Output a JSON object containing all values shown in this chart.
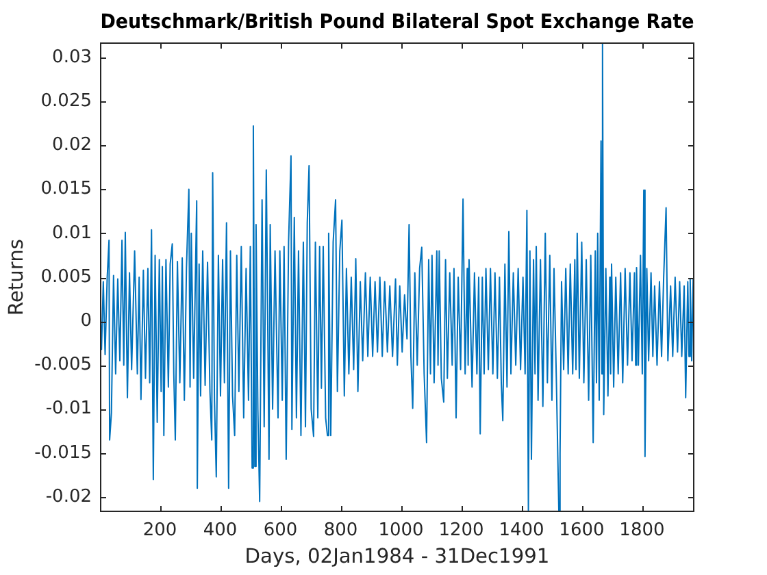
{
  "chart_data": {
    "type": "line",
    "title": "Deutschmark/British Pound Bilateral Spot Exchange Rate",
    "xlabel": "Days, 02Jan1984 - 31Dec1991",
    "ylabel": "Returns",
    "color": "#0072bd",
    "xlim": [
      1,
      1974
    ],
    "ylim": [
      -0.0217,
      0.0317
    ],
    "xticks": [
      200,
      400,
      600,
      800,
      1000,
      1200,
      1400,
      1600,
      1800
    ],
    "yticks": [
      -0.02,
      -0.015,
      -0.01,
      -0.005,
      0,
      0.005,
      0.01,
      0.015,
      0.02,
      0.025,
      0.03
    ],
    "x": [
      1,
      6,
      12,
      18,
      25,
      31,
      33,
      39,
      46,
      53,
      60,
      67,
      74,
      80,
      85,
      92,
      99,
      106,
      116,
      125,
      131,
      137,
      145,
      152,
      160,
      166,
      172,
      178,
      184,
      191,
      198,
      204,
      208,
      213,
      220,
      228,
      234,
      241,
      246,
      251,
      258,
      266,
      274,
      281,
      288,
      296,
      300,
      304,
      312,
      322,
      324,
      330,
      335,
      342,
      350,
      358,
      366,
      372,
      375,
      381,
      387,
      394,
      401,
      408,
      414,
      421,
      428,
      434,
      441,
      448,
      455,
      462,
      470,
      478,
      486,
      494,
      500,
      506,
      510,
      515,
      519,
      525,
      531,
      539,
      546,
      553,
      562,
      566,
      574,
      582,
      592,
      598,
      606,
      612,
      619,
      627,
      635,
      638,
      646,
      653,
      660,
      668,
      676,
      683,
      689,
      695,
      702,
      710,
      716,
      724,
      730,
      736,
      742,
      750,
      756,
      760,
      767,
      775,
      783,
      789,
      797,
      804,
      812,
      819,
      827,
      835,
      843,
      850,
      857,
      865,
      873,
      882,
      890,
      898,
      906,
      914,
      922,
      930,
      938,
      946,
      955,
      963,
      972,
      982,
      988,
      996,
      1004,
      1012,
      1020,
      1027,
      1033,
      1039,
      1046,
      1054,
      1062,
      1069,
      1077,
      1085,
      1092,
      1098,
      1103,
      1110,
      1119,
      1123,
      1127,
      1134,
      1142,
      1148,
      1154,
      1162,
      1170,
      1176,
      1183,
      1190,
      1198,
      1206,
      1213,
      1220,
      1223,
      1226,
      1236,
      1244,
      1252,
      1258,
      1263,
      1270,
      1276,
      1282,
      1290,
      1297,
      1305,
      1312,
      1320,
      1327,
      1333,
      1338,
      1345,
      1352,
      1358,
      1365,
      1373,
      1381,
      1389,
      1397,
      1405,
      1412,
      1418,
      1423,
      1428,
      1433,
      1440,
      1445,
      1449,
      1455,
      1463,
      1471,
      1479,
      1486,
      1494,
      1501,
      1508,
      1516,
      1524,
      1528,
      1533,
      1540,
      1547,
      1555,
      1562,
      1570,
      1577,
      1581,
      1585,
      1592,
      1600,
      1607,
      1615,
      1623,
      1630,
      1638,
      1645,
      1649,
      1653,
      1658,
      1664,
      1667,
      1669,
      1673,
      1680,
      1687,
      1693,
      1696,
      1699,
      1706,
      1713,
      1721,
      1729,
      1736,
      1744,
      1752,
      1760,
      1767,
      1775,
      1779,
      1782,
      1788,
      1795,
      1801,
      1806,
      1810,
      1816,
      1822,
      1830,
      1836,
      1842,
      1850,
      1858,
      1865,
      1872,
      1880,
      1886,
      1895,
      1902,
      1910,
      1918,
      1925,
      1932,
      1940,
      1945,
      1952,
      1956,
      1960,
      1965,
      1970,
      1974
    ],
    "values": [
      0.0022,
      -0.0032,
      0.0045,
      -0.0038,
      0.005,
      0.0092,
      -0.0135,
      -0.0104,
      0.0052,
      -0.006,
      0.0048,
      -0.0045,
      0.0092,
      -0.005,
      0.0101,
      -0.0087,
      0.0055,
      -0.0055,
      0.008,
      -0.006,
      0.005,
      -0.0089,
      0.0058,
      -0.0065,
      0.006,
      -0.007,
      0.0104,
      -0.018,
      0.0075,
      -0.0115,
      0.007,
      -0.008,
      0.0062,
      -0.013,
      0.007,
      -0.0075,
      0.0065,
      0.0088,
      -0.006,
      -0.0135,
      0.0068,
      -0.007,
      0.0072,
      -0.009,
      0.006,
      0.015,
      -0.0075,
      0.01,
      -0.0065,
      0.0137,
      -0.019,
      0.0065,
      -0.0085,
      0.008,
      -0.0073,
      0.0067,
      -0.008,
      -0.0135,
      0.0169,
      -0.009,
      -0.0177,
      0.0075,
      -0.0085,
      0.007,
      -0.007,
      0.0112,
      -0.019,
      0.008,
      -0.0085,
      -0.013,
      0.0075,
      -0.008,
      0.0085,
      -0.011,
      0.006,
      -0.009,
      0.0085,
      -0.0167,
      0.0222,
      -0.0165,
      0.011,
      -0.01,
      -0.0205,
      0.0138,
      -0.012,
      0.0172,
      -0.0157,
      0.011,
      -0.01,
      0.008,
      -0.011,
      0.008,
      -0.009,
      0.0085,
      -0.0157,
      0.009,
      0.0188,
      -0.0123,
      0.0118,
      -0.011,
      0.008,
      -0.013,
      0.009,
      -0.012,
      0.0112,
      0.0177,
      -0.01,
      -0.0131,
      0.009,
      -0.011,
      0.0085,
      -0.0076,
      0.0085,
      -0.011,
      -0.013,
      0.01,
      -0.013,
      0.009,
      0.0138,
      -0.008,
      0.008,
      0.0115,
      -0.0085,
      0.006,
      -0.006,
      0.005,
      -0.0055,
      0.0071,
      -0.008,
      0.0045,
      -0.0045,
      0.0055,
      -0.004,
      0.005,
      -0.004,
      0.0045,
      -0.0035,
      0.005,
      -0.004,
      0.0045,
      -0.0035,
      0.004,
      -0.004,
      0.0048,
      -0.005,
      0.004,
      -0.0035,
      0.003,
      -0.002,
      0.011,
      -0.004,
      -0.0099,
      0.0055,
      -0.005,
      0.006,
      0.0084,
      -0.006,
      -0.0138,
      0.007,
      -0.006,
      0.0075,
      -0.007,
      0.008,
      -0.005,
      0.008,
      -0.0065,
      -0.0092,
      0.007,
      -0.0065,
      0.0055,
      -0.005,
      0.006,
      -0.011,
      0.005,
      -0.0055,
      0.0139,
      -0.006,
      0.006,
      -0.005,
      0.007,
      -0.0075,
      0.0055,
      -0.006,
      0.005,
      -0.0128,
      0.005,
      -0.006,
      0.006,
      -0.0055,
      0.006,
      -0.006,
      0.0055,
      -0.0065,
      0.005,
      -0.007,
      -0.0113,
      0.0065,
      -0.0075,
      0.0102,
      -0.006,
      0.0055,
      -0.005,
      0.006,
      -0.0055,
      0.005,
      -0.006,
      0.0126,
      -0.0217,
      0.008,
      -0.0157,
      0.007,
      -0.006,
      0.0085,
      -0.009,
      0.007,
      -0.0097,
      0.01,
      -0.007,
      0.0075,
      -0.009,
      0.006,
      -0.007,
      -0.0216,
      -0.0151,
      0.0045,
      -0.0055,
      0.006,
      -0.006,
      0.0065,
      -0.006,
      0.007,
      -0.0055,
      0.01,
      -0.0065,
      0.009,
      -0.007,
      0.007,
      -0.009,
      0.0075,
      -0.0138,
      0.008,
      -0.007,
      0.01,
      -0.009,
      0.0205,
      -0.006,
      0.0317,
      -0.0106,
      0.006,
      -0.0085,
      0.005,
      -0.006,
      0.0065,
      -0.0075,
      0.005,
      -0.006,
      0.0055,
      -0.007,
      0.006,
      -0.005,
      0.0055,
      -0.0045,
      0.0055,
      -0.005,
      0.0061,
      -0.005,
      0.0075,
      -0.006,
      0.0149,
      -0.0154,
      0.006,
      -0.0045,
      0.0055,
      -0.004,
      0.004,
      -0.005,
      0.0045,
      -0.004,
      0.005,
      0.0129,
      -0.0045,
      0.004,
      -0.004,
      0.005,
      -0.0035,
      0.0045,
      -0.004,
      0.004,
      -0.0087,
      0.0045,
      -0.004,
      0.0048,
      -0.0045,
      0.0048,
      0.0013
    ]
  }
}
